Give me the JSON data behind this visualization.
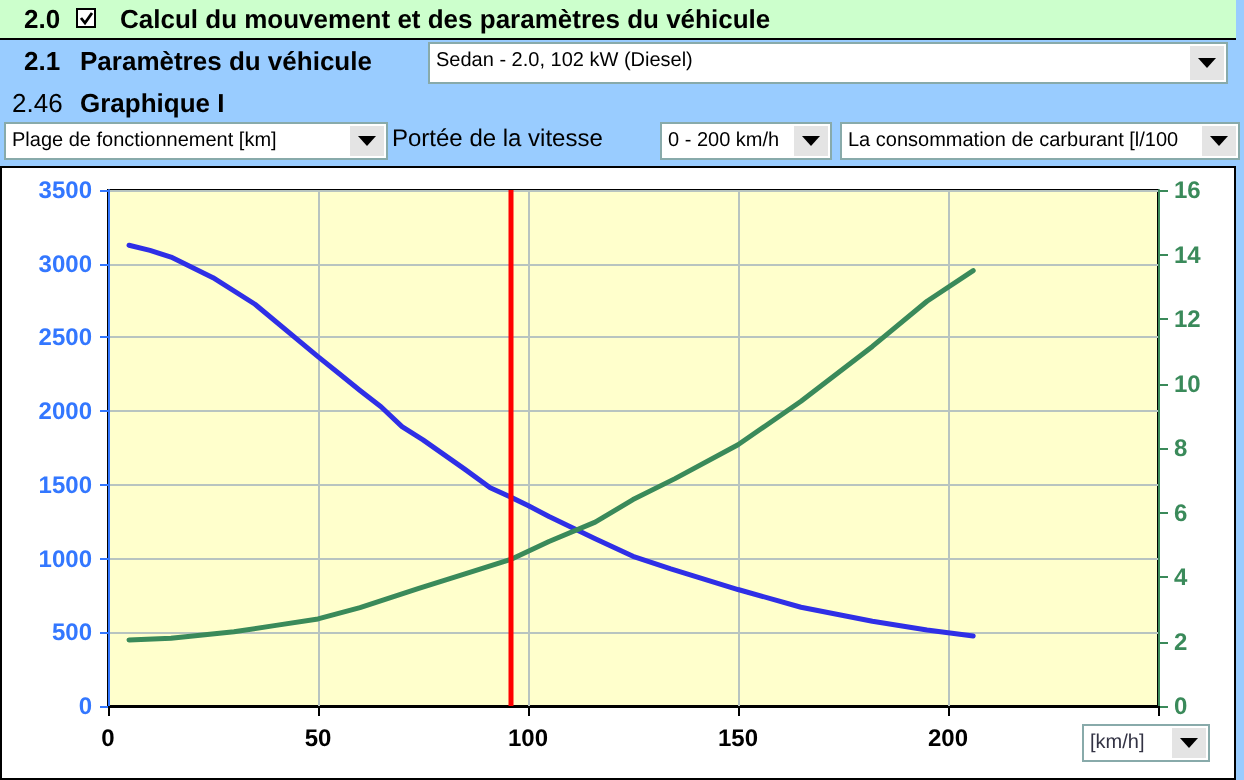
{
  "chart_data": {
    "type": "line",
    "annotations": [
      "2.0",
      "Calcul du mouvement et des paramètres du véhicule",
      "2.1",
      "Paramètres du véhicule",
      "Sedan - 2.0, 102 kW (Diesel)",
      "2.46",
      "Graphique I",
      "Portée de la vitesse",
      "0 - 200 km/h"
    ],
    "ylabel": "Plage de fonctionnement [km]",
    "y2label": "La consommation de carburant [l/100",
    "xlabel": "[km/h]",
    "series": [
      {
        "color": "#2f2fe6",
        "x": [
          5,
          10,
          15,
          25,
          35,
          50,
          55,
          60,
          65,
          70,
          75,
          85,
          91,
          96,
          100,
          105,
          116,
          125,
          134,
          150,
          165,
          182,
          195,
          206
        ],
        "values": [
          3125,
          3090,
          3045,
          2905,
          2725,
          2370,
          2255,
          2140,
          2030,
          1895,
          1805,
          1605,
          1480,
          1415,
          1360,
          1285,
          1135,
          1015,
          930,
          790,
          670,
          575,
          515,
          475
        ]
      },
      {
        "color": "#3a8a5a",
        "axis": "y2",
        "x": [
          5,
          15,
          30,
          40,
          50,
          60,
          74,
          85,
          96,
          105,
          116,
          125,
          135,
          150,
          165,
          182,
          195,
          206
        ],
        "values": [
          2.05,
          2.1,
          2.3,
          2.5,
          2.7,
          3.05,
          3.65,
          4.1,
          4.55,
          5.1,
          5.7,
          6.4,
          7.05,
          8.1,
          9.45,
          11.15,
          12.55,
          13.5
        ]
      }
    ],
    "ref_lines": [
      {
        "axis": "x",
        "value": 96,
        "color": "#ff0000"
      }
    ],
    "xlim": [
      0,
      250
    ],
    "xticks": [
      0,
      50,
      100,
      150,
      200,
      {
        "value": 250,
        "label": null
      }
    ],
    "ylim": [
      0,
      3500
    ],
    "yticks": [
      0,
      500,
      1000,
      1500,
      2000,
      2500,
      3000,
      3500
    ],
    "y2lim": [
      0,
      16
    ],
    "y2ticks": [
      0,
      2,
      4,
      6,
      8,
      10,
      12,
      14,
      16
    ],
    "grid": true,
    "marker": "none",
    "line_style": "solid"
  }
}
